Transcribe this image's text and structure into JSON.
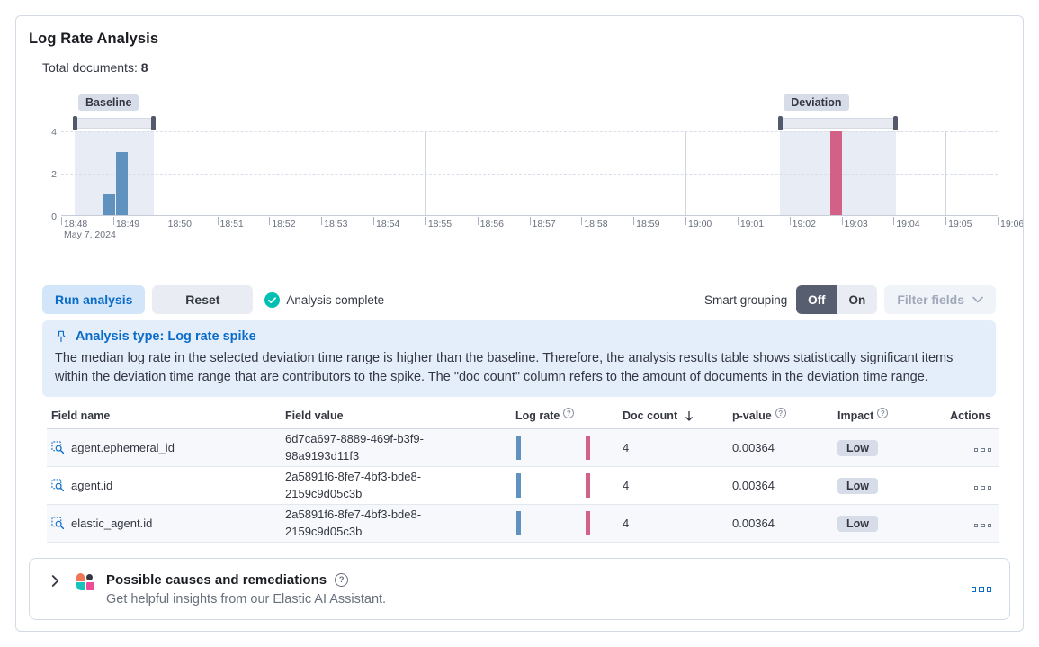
{
  "panel": {
    "title": "Log Rate Analysis"
  },
  "summary": {
    "label": "Total documents:",
    "count": "8"
  },
  "chart": {
    "type": "bar",
    "ymax": 4,
    "y_ticks": [
      4,
      2,
      0
    ],
    "x_total_minutes": 18,
    "x_labels": [
      "18:48",
      "18:49",
      "18:50",
      "18:51",
      "18:52",
      "18:53",
      "18:54",
      "18:55",
      "18:56",
      "18:57",
      "18:58",
      "18:59",
      "19:00",
      "19:01",
      "19:02",
      "19:03",
      "19:04",
      "19:05",
      "19:06"
    ],
    "x_first_label_sub": "May 7, 2024",
    "vgrid_minutes": [
      7,
      12,
      17
    ],
    "windows": [
      {
        "name": "Baseline",
        "start_minute": 0.26,
        "end_minute": 1.78
      },
      {
        "name": "Deviation",
        "start_minute": 13.82,
        "end_minute": 16.05
      }
    ],
    "bars": [
      {
        "approx_time": "18:48:50",
        "minute": 0.81,
        "count": 1,
        "series": "baseline"
      },
      {
        "approx_time": "18:49:05",
        "minute": 1.06,
        "count": 3,
        "series": "baseline"
      },
      {
        "approx_time": "19:03:00",
        "minute": 14.79,
        "count": 4,
        "series": "deviation"
      }
    ],
    "bar_width_minutes": 0.225
  },
  "controls": {
    "run_label": "Run analysis",
    "reset_label": "Reset",
    "status_label": "Analysis complete",
    "smart_grouping_label": "Smart grouping",
    "toggle_off": "Off",
    "toggle_on": "On",
    "filter_fields_label": "Filter fields"
  },
  "callout": {
    "title": "Analysis type: Log rate spike",
    "body": "The median log rate in the selected deviation time range is higher than the baseline. Therefore, the analysis results table shows statistically significant items within the deviation time range that are contributors to the spike. The \"doc count\" column refers to the amount of documents in the deviation time range."
  },
  "table": {
    "headers": {
      "field_name": "Field name",
      "field_value": "Field value",
      "log_rate": "Log rate",
      "doc_count": "Doc count",
      "p_value": "p-value",
      "impact": "Impact",
      "actions": "Actions"
    },
    "sort": {
      "column": "doc_count",
      "direction": "desc"
    },
    "rows": [
      {
        "field_name": "agent.ephemeral_id",
        "field_value": "6d7ca697-8889-469f-b3f9-98a9193d11f3",
        "doc_count": "4",
        "p_value": "0.00364",
        "impact": "Low"
      },
      {
        "field_name": "agent.id",
        "field_value": "2a5891f6-8fe7-4bf3-bde8-2159c9d05c3b",
        "doc_count": "4",
        "p_value": "0.00364",
        "impact": "Low"
      },
      {
        "field_name": "elastic_agent.id",
        "field_value": "2a5891f6-8fe7-4bf3-bde8-2159c9d05c3b",
        "doc_count": "4",
        "p_value": "0.00364",
        "impact": "Low"
      }
    ]
  },
  "ai_panel": {
    "title": "Possible causes and remediations",
    "subtitle": "Get helpful insights from our Elastic AI Assistant."
  },
  "colors": {
    "accent_primary": "#0a6cc8",
    "success": "#00bfb3",
    "baseline_bar": "#6092c0",
    "deviation_bar": "#d36086",
    "badge_bg": "#d6dce8",
    "callout_bg": "#e4eefa",
    "toggle_off_bg": "#565e70",
    "panel_border": "#d3dae6",
    "primary_btn_bg": "#d3e5f8"
  }
}
